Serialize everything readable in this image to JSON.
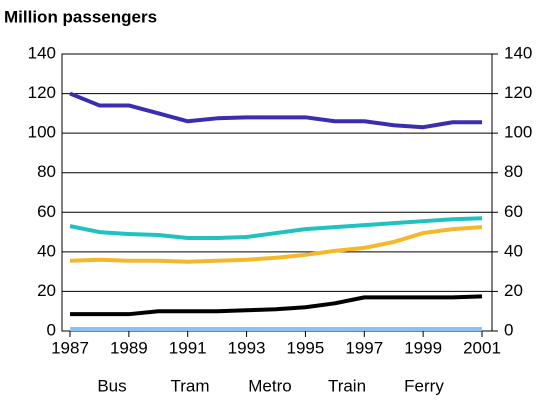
{
  "chart_data": {
    "type": "line",
    "title": "Million passengers",
    "x": [
      1987,
      1988,
      1989,
      1990,
      1991,
      1992,
      1993,
      1994,
      1995,
      1996,
      1997,
      1998,
      1999,
      2000,
      2001
    ],
    "xlim": [
      1987,
      2001
    ],
    "xticks": [
      1987,
      1989,
      1991,
      1993,
      1995,
      1997,
      1999,
      2001
    ],
    "ylim": [
      0,
      140
    ],
    "yticks": [
      0,
      20,
      40,
      60,
      80,
      100,
      120,
      140
    ],
    "y2lim": [
      0,
      140
    ],
    "y2ticks": [
      0,
      20,
      40,
      60,
      80,
      100,
      120,
      140
    ],
    "grid": true,
    "series": [
      {
        "name": "Bus",
        "color": "#3b2db0",
        "values": [
          120,
          114,
          114,
          110,
          106,
          107.5,
          108,
          108,
          108,
          106,
          106,
          104,
          103,
          105.5,
          105.5
        ]
      },
      {
        "name": "Tram",
        "color": "#1fc1c1",
        "values": [
          53,
          50,
          49,
          48.5,
          47,
          47,
          47.5,
          49.5,
          51.5,
          52.5,
          53.5,
          54.5,
          55.5,
          56.5,
          57
        ]
      },
      {
        "name": "Metro",
        "color": "#f5b82a",
        "values": [
          35.5,
          36,
          35.5,
          35.5,
          35,
          35.5,
          36,
          37,
          38.5,
          40.5,
          42,
          45,
          49.5,
          51.5,
          52.5
        ]
      },
      {
        "name": "Train",
        "color": "#000000",
        "values": [
          8.5,
          8.5,
          8.5,
          10,
          10,
          10,
          10.5,
          11,
          12,
          14,
          17,
          17,
          17,
          17,
          17.5
        ]
      },
      {
        "name": "Ferry",
        "color": "#8fc1ec",
        "values": [
          1,
          1,
          1,
          1,
          1,
          1,
          1,
          1,
          1,
          1,
          1,
          1,
          1,
          1,
          1
        ]
      }
    ]
  }
}
